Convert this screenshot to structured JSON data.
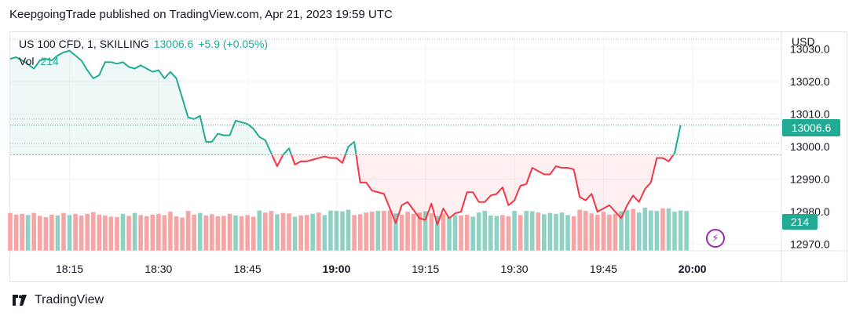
{
  "caption": "KeepgoingTrade published on TradingView.com, Apr 21, 2023 19:59 UTC",
  "legend": {
    "symbol": "US 100 CFD, 1, SKILLING",
    "last": "13006.6",
    "change": "+5.9 (+0.05%)"
  },
  "volume_legend": {
    "label": "Vol",
    "value": "214"
  },
  "currency": "USD",
  "price_badge": "13006.6",
  "volume_badge": "214",
  "brand": "TradingView",
  "colors": {
    "up": "#22ab94",
    "down": "#f23645",
    "vol_up": "#8fd2c4",
    "vol_down": "#f7a4a4",
    "grid": "#f0f3fa",
    "text": "#131722",
    "alert": "#9c27b0"
  },
  "icons": {
    "alert": "lightning-bolt-icon",
    "logo": "tradingview-logo-icon"
  },
  "chart_data": {
    "type": "line",
    "title": "US 100 CFD, 1, SKILLING",
    "ylabel": "USD",
    "x_ticks": [
      "18:15",
      "18:30",
      "18:45",
      "19:00",
      "19:15",
      "19:30",
      "19:45",
      "20:00"
    ],
    "x_tick_minutes": [
      15,
      30,
      45,
      60,
      75,
      90,
      105,
      120
    ],
    "y_ticks": [
      12970.0,
      12980.0,
      12990.0,
      13000.0,
      13010.0,
      13020.0,
      13030.0
    ],
    "y_tick_labels": [
      "12970.0",
      "12980.0",
      "12990.0",
      "13000.0",
      "13010.0",
      "13020.0",
      "13030.0"
    ],
    "ylim": [
      12968,
      13034
    ],
    "xlim": [
      5,
      135
    ],
    "baseline": 12997.5,
    "series": [
      {
        "minutes": [
          5,
          6,
          7.5,
          9,
          10,
          11,
          12,
          13,
          14,
          15,
          16,
          17,
          18,
          19,
          20,
          21,
          22,
          23,
          24,
          25,
          26,
          27,
          28,
          29,
          30,
          31,
          32,
          33,
          34,
          35,
          36,
          37,
          38,
          39,
          40,
          41,
          42,
          43,
          44,
          45,
          46,
          47,
          48,
          49,
          50,
          51,
          52,
          53,
          54,
          55,
          56,
          57,
          58,
          59,
          60,
          61,
          62,
          63,
          64,
          65,
          66,
          67,
          68,
          69,
          70,
          71,
          72,
          73,
          74,
          75,
          76,
          77,
          78,
          79,
          80,
          81,
          82,
          83,
          84,
          85,
          86,
          87,
          88,
          89,
          90,
          91,
          92,
          93,
          94,
          95,
          96,
          97,
          98,
          99,
          100,
          101,
          102,
          103,
          104,
          105,
          106,
          107,
          108,
          109,
          110,
          111,
          112,
          113,
          114,
          115,
          116,
          117,
          118
        ],
        "close": [
          13027.0,
          13027.5,
          13026.0,
          13024.0,
          13026.5,
          13027.0,
          13026.5,
          13028.0,
          13029.0,
          13029.5,
          13028.0,
          13026.5,
          13023.5,
          13021.0,
          13022.0,
          13026.0,
          13026.0,
          13025.5,
          13026.0,
          13024.5,
          13024.0,
          13025.0,
          13024.0,
          13023.0,
          13023.5,
          13021.0,
          13023.0,
          13021.0,
          13015.0,
          13009.0,
          13008.5,
          13009.5,
          13001.5,
          13001.5,
          13004.0,
          13003.5,
          13003.5,
          13008.0,
          13007.5,
          13007.0,
          13005.5,
          13003.0,
          13002.0,
          12998.0,
          12994.0,
          12997.5,
          12999.5,
          12994.5,
          12995.5,
          12995.5,
          12996.0,
          12996.5,
          12997.0,
          12996.5,
          12996.5,
          12995.0,
          13000.0,
          13001.5,
          12989.0,
          12989.0,
          12986.5,
          12986.0,
          12985.5,
          12981.0,
          12976.5,
          12982.0,
          12983.0,
          12980.5,
          12978.0,
          12977.5,
          12982.5,
          12976.0,
          12981.0,
          12978.0,
          12979.5,
          12980.0,
          12986.0,
          12986.0,
          12983.0,
          12983.0,
          12985.0,
          12985.5,
          12987.5,
          12982.0,
          12983.5,
          12988.0,
          12988.5,
          12993.5,
          12992.5,
          12991.5,
          12991.5,
          12994.0,
          12993.5,
          12993.5,
          12993.0,
          12984.5,
          12983.5,
          12985.5,
          12980.0,
          12981.0,
          12982.0,
          12980.0,
          12978.0,
          12982.0,
          12985.0,
          12983.0,
          12987.0,
          12989.0,
          12996.5,
          12996.5,
          12995.5,
          12998.0,
          13006.6
        ]
      }
    ],
    "volume": {
      "label": "Vol",
      "minutes": [
        5,
        6,
        7,
        8,
        9,
        10,
        11,
        12,
        13,
        14,
        15,
        16,
        17,
        18,
        19,
        20,
        21,
        22,
        23,
        24,
        25,
        26,
        27,
        28,
        29,
        30,
        31,
        32,
        33,
        34,
        35,
        36,
        37,
        38,
        39,
        40,
        41,
        42,
        43,
        44,
        45,
        46,
        47,
        48,
        49,
        50,
        51,
        52,
        53,
        54,
        55,
        56,
        57,
        58,
        59,
        60,
        61,
        62,
        63,
        64,
        65,
        66,
        67,
        68,
        69,
        70,
        71,
        72,
        73,
        74,
        75,
        76,
        77,
        78,
        79,
        80,
        81,
        82,
        83,
        84,
        85,
        86,
        87,
        88,
        89,
        90,
        91,
        92,
        93,
        94,
        95,
        96,
        97,
        98,
        99,
        100,
        101,
        102,
        103,
        104,
        105,
        106,
        107,
        108,
        109,
        110,
        111,
        112,
        113,
        114,
        115,
        116,
        117,
        118,
        119
      ],
      "values": [
        0.92,
        0.88,
        0.9,
        0.87,
        0.92,
        0.85,
        0.82,
        0.88,
        0.86,
        0.92,
        0.87,
        0.9,
        0.86,
        0.9,
        0.94,
        0.88,
        0.86,
        0.83,
        0.82,
        0.9,
        0.85,
        0.92,
        0.87,
        0.84,
        0.88,
        0.9,
        0.87,
        0.95,
        0.84,
        0.81,
        0.97,
        0.88,
        0.92,
        0.86,
        0.89,
        0.84,
        0.85,
        0.9,
        0.86,
        0.84,
        0.87,
        0.83,
        0.98,
        0.93,
        0.97,
        0.89,
        0.92,
        0.91,
        0.83,
        0.86,
        0.87,
        0.9,
        0.93,
        0.87,
        0.98,
        0.97,
        0.96,
        1.0,
        0.87,
        0.89,
        0.93,
        0.95,
        0.97,
        0.97,
        0.98,
        0.91,
        0.88,
        0.95,
        0.9,
        0.93,
        0.96,
        0.91,
        0.85,
        0.91,
        0.83,
        0.87,
        0.86,
        0.88,
        0.83,
        0.93,
        0.97,
        0.86,
        0.85,
        0.87,
        0.84,
        0.97,
        0.87,
        0.97,
        0.96,
        0.93,
        0.89,
        0.92,
        0.9,
        0.93,
        0.87,
        0.84,
        1.0,
        0.97,
        0.91,
        0.88,
        0.95,
        0.88,
        0.9,
        0.96,
        0.99,
        1.02,
        0.93,
        1.05,
        0.98,
        0.97,
        1.03,
        1.03,
        0.95,
        0.98,
        0.97
      ],
      "direction": [
        "d",
        "d",
        "d",
        "u",
        "d",
        "d",
        "d",
        "d",
        "u",
        "d",
        "u",
        "d",
        "d",
        "d",
        "d",
        "d",
        "d",
        "d",
        "d",
        "u",
        "d",
        "u",
        "d",
        "d",
        "d",
        "d",
        "d",
        "d",
        "d",
        "d",
        "d",
        "d",
        "u",
        "d",
        "d",
        "d",
        "d",
        "d",
        "u",
        "d",
        "d",
        "d",
        "u",
        "d",
        "d",
        "u",
        "d",
        "d",
        "u",
        "d",
        "d",
        "u",
        "d",
        "u",
        "u",
        "u",
        "u",
        "u",
        "d",
        "d",
        "d",
        "d",
        "u",
        "d",
        "d",
        "u",
        "d",
        "d",
        "d",
        "d",
        "u",
        "d",
        "u",
        "d",
        "u",
        "u",
        "d",
        "d",
        "u",
        "u",
        "u",
        "u",
        "u",
        "d",
        "d",
        "u",
        "d",
        "u",
        "u",
        "d",
        "u",
        "u",
        "u",
        "u",
        "u",
        "d",
        "d",
        "d",
        "d",
        "d",
        "d",
        "d",
        "d",
        "u",
        "u",
        "d",
        "u",
        "u",
        "u",
        "u",
        "d",
        "u",
        "u",
        "u",
        "u"
      ]
    }
  }
}
